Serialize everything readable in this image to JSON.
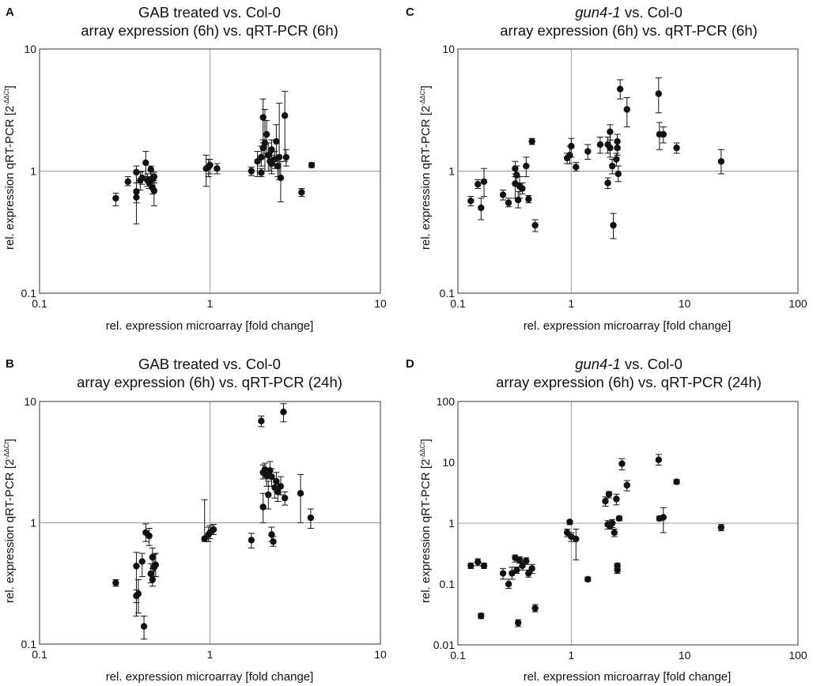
{
  "chart_data": [
    {
      "panel": "A",
      "type": "scatter",
      "title_line1": "GAB treated vs. Col-0",
      "title_line2": "array expression (6h) vs. qRT-PCR (6h)",
      "xlabel": "rel. expression microarray [fold change]",
      "ylabel": "rel. expression qRT-PCR [2",
      "ylabel_sup": "-ΔΔCt",
      "ylabel_end": "]",
      "xscale": "log",
      "yscale": "log",
      "xlim": [
        0.1,
        10
      ],
      "ylim": [
        0.1,
        10
      ],
      "xticks": [
        "0.1",
        "1",
        "10"
      ],
      "yticks": [
        "0.1",
        "1",
        "10"
      ],
      "points": [
        {
          "x": 0.28,
          "y": 0.6,
          "lo": 0.52,
          "hi": 0.66
        },
        {
          "x": 0.33,
          "y": 0.82,
          "lo": 0.76,
          "hi": 0.9
        },
        {
          "x": 0.37,
          "y": 0.98,
          "lo": 0.8,
          "hi": 1.1
        },
        {
          "x": 0.37,
          "y": 0.68,
          "lo": 0.37,
          "hi": 0.8
        },
        {
          "x": 0.37,
          "y": 0.61,
          "lo": 0.55,
          "hi": 0.7
        },
        {
          "x": 0.39,
          "y": 0.84,
          "lo": 0.7,
          "hi": 0.98
        },
        {
          "x": 0.4,
          "y": 0.88,
          "lo": 0.78,
          "hi": 1.0
        },
        {
          "x": 0.42,
          "y": 1.17,
          "lo": 0.9,
          "hi": 1.45
        },
        {
          "x": 0.43,
          "y": 0.84,
          "lo": 0.75,
          "hi": 0.95
        },
        {
          "x": 0.44,
          "y": 0.8,
          "lo": 0.72,
          "hi": 0.9
        },
        {
          "x": 0.45,
          "y": 1.03,
          "lo": 0.9,
          "hi": 1.1
        },
        {
          "x": 0.46,
          "y": 0.73,
          "lo": 0.65,
          "hi": 0.82
        },
        {
          "x": 0.46,
          "y": 0.86,
          "lo": 0.77,
          "hi": 0.95
        },
        {
          "x": 0.47,
          "y": 0.9,
          "lo": 0.84,
          "hi": 0.98
        },
        {
          "x": 0.47,
          "y": 0.69,
          "lo": 0.52,
          "hi": 0.8
        },
        {
          "x": 0.95,
          "y": 1.05,
          "lo": 0.75,
          "hi": 1.35
        },
        {
          "x": 0.98,
          "y": 1.08,
          "lo": 0.9,
          "hi": 1.25
        },
        {
          "x": 1.0,
          "y": 1.12,
          "lo": 0.95,
          "hi": 1.25
        },
        {
          "x": 1.1,
          "y": 1.05,
          "lo": 0.95,
          "hi": 1.15
        },
        {
          "x": 1.75,
          "y": 1.0,
          "lo": 0.92,
          "hi": 1.08
        },
        {
          "x": 1.9,
          "y": 1.2,
          "lo": 0.9,
          "hi": 1.45
        },
        {
          "x": 2.0,
          "y": 1.3,
          "lo": 1.1,
          "hi": 1.6
        },
        {
          "x": 2.0,
          "y": 0.97,
          "lo": 0.9,
          "hi": 1.05
        },
        {
          "x": 2.05,
          "y": 2.75,
          "lo": 1.7,
          "hi": 3.9
        },
        {
          "x": 2.05,
          "y": 1.55,
          "lo": 1.3,
          "hi": 1.8
        },
        {
          "x": 2.1,
          "y": 1.7,
          "lo": 1.0,
          "hi": 3.2
        },
        {
          "x": 2.15,
          "y": 2.0,
          "lo": 1.4,
          "hi": 2.6
        },
        {
          "x": 2.2,
          "y": 1.35,
          "lo": 1.0,
          "hi": 1.7
        },
        {
          "x": 2.25,
          "y": 1.2,
          "lo": 1.0,
          "hi": 1.4
        },
        {
          "x": 2.3,
          "y": 1.5,
          "lo": 1.2,
          "hi": 1.8
        },
        {
          "x": 2.3,
          "y": 1.15,
          "lo": 0.95,
          "hi": 1.35
        },
        {
          "x": 2.4,
          "y": 1.25,
          "lo": 1.05,
          "hi": 1.45
        },
        {
          "x": 2.45,
          "y": 1.75,
          "lo": 1.25,
          "hi": 2.4
        },
        {
          "x": 2.5,
          "y": 1.1,
          "lo": 0.9,
          "hi": 1.3
        },
        {
          "x": 2.55,
          "y": 1.3,
          "lo": 0.85,
          "hi": 3.6
        },
        {
          "x": 2.6,
          "y": 0.88,
          "lo": 0.56,
          "hi": 1.2
        },
        {
          "x": 2.75,
          "y": 2.85,
          "lo": 1.2,
          "hi": 4.5
        },
        {
          "x": 2.8,
          "y": 1.3,
          "lo": 1.1,
          "hi": 1.5
        },
        {
          "x": 3.45,
          "y": 0.67,
          "lo": 0.62,
          "hi": 0.72
        },
        {
          "x": 3.95,
          "y": 1.12,
          "lo": 1.07,
          "hi": 1.17
        }
      ]
    },
    {
      "panel": "B",
      "type": "scatter",
      "title_line1": "GAB treated vs. Col-0",
      "title_line2": "array expression (6h) vs. qRT-PCR (24h)",
      "xlabel": "rel. expression microarray [fold change]",
      "ylabel": "rel. expression qRT-PCR [2",
      "ylabel_sup": "-ΔΔCt",
      "ylabel_end": "]",
      "xscale": "log",
      "yscale": "log",
      "xlim": [
        0.1,
        10
      ],
      "ylim": [
        0.1,
        10
      ],
      "xticks": [
        "0.1",
        "1",
        "10"
      ],
      "yticks": [
        "0.1",
        "1",
        "10"
      ],
      "points": [
        {
          "x": 0.28,
          "y": 0.32,
          "lo": 0.3,
          "hi": 0.34
        },
        {
          "x": 0.37,
          "y": 0.25,
          "lo": 0.22,
          "hi": 0.28
        },
        {
          "x": 0.37,
          "y": 0.44,
          "lo": 0.17,
          "hi": 0.57
        },
        {
          "x": 0.38,
          "y": 0.26,
          "lo": 0.18,
          "hi": 0.34
        },
        {
          "x": 0.4,
          "y": 0.48,
          "lo": 0.36,
          "hi": 0.56
        },
        {
          "x": 0.41,
          "y": 0.14,
          "lo": 0.11,
          "hi": 0.17
        },
        {
          "x": 0.42,
          "y": 0.83,
          "lo": 0.7,
          "hi": 0.98
        },
        {
          "x": 0.44,
          "y": 0.78,
          "lo": 0.65,
          "hi": 0.9
        },
        {
          "x": 0.45,
          "y": 0.38,
          "lo": 0.32,
          "hi": 0.46
        },
        {
          "x": 0.46,
          "y": 0.52,
          "lo": 0.42,
          "hi": 0.62
        },
        {
          "x": 0.46,
          "y": 0.34,
          "lo": 0.3,
          "hi": 0.4
        },
        {
          "x": 0.47,
          "y": 0.43,
          "lo": 0.36,
          "hi": 0.55
        },
        {
          "x": 0.48,
          "y": 0.45,
          "lo": 0.36,
          "hi": 0.56
        },
        {
          "x": 0.93,
          "y": 0.74,
          "lo": 0.7,
          "hi": 1.55
        },
        {
          "x": 0.98,
          "y": 0.8,
          "lo": 0.7,
          "hi": 0.92
        },
        {
          "x": 1.0,
          "y": 0.83,
          "lo": 0.74,
          "hi": 0.95
        },
        {
          "x": 1.05,
          "y": 0.88,
          "lo": 0.8,
          "hi": 0.97
        },
        {
          "x": 1.75,
          "y": 0.72,
          "lo": 0.62,
          "hi": 0.82
        },
        {
          "x": 2.0,
          "y": 6.9,
          "lo": 6.2,
          "hi": 7.6
        },
        {
          "x": 2.05,
          "y": 2.6,
          "lo": 2.3,
          "hi": 3.0
        },
        {
          "x": 2.05,
          "y": 1.35,
          "lo": 1.0,
          "hi": 1.75
        },
        {
          "x": 2.1,
          "y": 2.75,
          "lo": 2.4,
          "hi": 3.1
        },
        {
          "x": 2.15,
          "y": 2.45,
          "lo": 2.0,
          "hi": 2.8
        },
        {
          "x": 2.2,
          "y": 1.7,
          "lo": 1.3,
          "hi": 2.2
        },
        {
          "x": 2.25,
          "y": 2.7,
          "lo": 2.3,
          "hi": 3.2
        },
        {
          "x": 2.3,
          "y": 2.4,
          "lo": 2.0,
          "hi": 2.8
        },
        {
          "x": 2.3,
          "y": 0.8,
          "lo": 0.7,
          "hi": 0.92
        },
        {
          "x": 2.35,
          "y": 0.7,
          "lo": 0.64,
          "hi": 0.77
        },
        {
          "x": 2.4,
          "y": 1.95,
          "lo": 1.6,
          "hi": 2.3
        },
        {
          "x": 2.45,
          "y": 2.2,
          "lo": 1.8,
          "hi": 2.6
        },
        {
          "x": 2.5,
          "y": 1.8,
          "lo": 1.5,
          "hi": 2.1
        },
        {
          "x": 2.6,
          "y": 2.0,
          "lo": 1.7,
          "hi": 2.4
        },
        {
          "x": 2.7,
          "y": 8.2,
          "lo": 6.8,
          "hi": 9.6
        },
        {
          "x": 2.75,
          "y": 1.6,
          "lo": 1.4,
          "hi": 1.8
        },
        {
          "x": 3.4,
          "y": 1.75,
          "lo": 1.0,
          "hi": 2.5
        },
        {
          "x": 3.9,
          "y": 1.1,
          "lo": 0.9,
          "hi": 1.3
        }
      ]
    },
    {
      "panel": "C",
      "type": "scatter",
      "title_italic": "gun4-1",
      "title_line1": " vs. Col-0",
      "title_line2": "array expression (6h) vs. qRT-PCR (6h)",
      "xlabel": "rel. expression microarray [fold change]",
      "ylabel": "rel. expression qRT-PCR [2",
      "ylabel_sup": "-ΔΔCt",
      "ylabel_end": "]",
      "xscale": "log",
      "yscale": "log",
      "xlim": [
        0.1,
        100
      ],
      "ylim": [
        0.1,
        10
      ],
      "xticks": [
        "0.1",
        "1",
        "10",
        "100"
      ],
      "yticks": [
        "0.1",
        "1",
        "10"
      ],
      "points": [
        {
          "x": 0.13,
          "y": 0.57,
          "lo": 0.52,
          "hi": 0.62
        },
        {
          "x": 0.15,
          "y": 0.78,
          "lo": 0.72,
          "hi": 0.85
        },
        {
          "x": 0.16,
          "y": 0.5,
          "lo": 0.4,
          "hi": 0.6
        },
        {
          "x": 0.17,
          "y": 0.82,
          "lo": 0.62,
          "hi": 1.05
        },
        {
          "x": 0.25,
          "y": 0.64,
          "lo": 0.58,
          "hi": 0.7
        },
        {
          "x": 0.28,
          "y": 0.55,
          "lo": 0.51,
          "hi": 0.6
        },
        {
          "x": 0.32,
          "y": 1.05,
          "lo": 0.9,
          "hi": 1.2
        },
        {
          "x": 0.32,
          "y": 0.79,
          "lo": 0.6,
          "hi": 0.95
        },
        {
          "x": 0.33,
          "y": 0.93,
          "lo": 0.8,
          "hi": 1.1
        },
        {
          "x": 0.34,
          "y": 0.58,
          "lo": 0.5,
          "hi": 0.68
        },
        {
          "x": 0.35,
          "y": 0.75,
          "lo": 0.6,
          "hi": 0.9
        },
        {
          "x": 0.37,
          "y": 0.72,
          "lo": 0.65,
          "hi": 0.8
        },
        {
          "x": 0.4,
          "y": 1.1,
          "lo": 0.9,
          "hi": 1.3
        },
        {
          "x": 0.42,
          "y": 0.59,
          "lo": 0.55,
          "hi": 0.63
        },
        {
          "x": 0.45,
          "y": 1.75,
          "lo": 1.65,
          "hi": 1.85
        },
        {
          "x": 0.48,
          "y": 0.36,
          "lo": 0.32,
          "hi": 0.4
        },
        {
          "x": 0.92,
          "y": 1.28,
          "lo": 1.15,
          "hi": 1.4
        },
        {
          "x": 0.97,
          "y": 1.35,
          "lo": 1.15,
          "hi": 1.6
        },
        {
          "x": 1.0,
          "y": 1.6,
          "lo": 1.3,
          "hi": 1.85
        },
        {
          "x": 1.1,
          "y": 1.08,
          "lo": 1.0,
          "hi": 1.18
        },
        {
          "x": 1.4,
          "y": 1.45,
          "lo": 1.25,
          "hi": 1.65
        },
        {
          "x": 1.8,
          "y": 1.65,
          "lo": 1.4,
          "hi": 1.9
        },
        {
          "x": 2.1,
          "y": 1.65,
          "lo": 1.4,
          "hi": 1.9
        },
        {
          "x": 2.1,
          "y": 0.8,
          "lo": 0.72,
          "hi": 0.88
        },
        {
          "x": 2.2,
          "y": 2.1,
          "lo": 1.8,
          "hi": 2.4
        },
        {
          "x": 2.2,
          "y": 1.55,
          "lo": 1.3,
          "hi": 1.8
        },
        {
          "x": 2.3,
          "y": 1.1,
          "lo": 0.95,
          "hi": 1.25
        },
        {
          "x": 2.35,
          "y": 0.36,
          "lo": 0.28,
          "hi": 0.45
        },
        {
          "x": 2.5,
          "y": 1.25,
          "lo": 1.1,
          "hi": 1.4
        },
        {
          "x": 2.55,
          "y": 1.75,
          "lo": 1.5,
          "hi": 2.0
        },
        {
          "x": 2.55,
          "y": 1.55,
          "lo": 1.35,
          "hi": 1.75
        },
        {
          "x": 2.6,
          "y": 0.95,
          "lo": 0.82,
          "hi": 1.1
        },
        {
          "x": 2.7,
          "y": 4.7,
          "lo": 3.9,
          "hi": 5.6
        },
        {
          "x": 3.1,
          "y": 3.2,
          "lo": 2.3,
          "hi": 4.0
        },
        {
          "x": 5.9,
          "y": 4.3,
          "lo": 3.0,
          "hi": 5.8
        },
        {
          "x": 6.0,
          "y": 2.0,
          "lo": 1.5,
          "hi": 2.5
        },
        {
          "x": 6.5,
          "y": 2.0,
          "lo": 1.7,
          "hi": 2.3
        },
        {
          "x": 8.5,
          "y": 1.55,
          "lo": 1.4,
          "hi": 1.7
        },
        {
          "x": 21.0,
          "y": 1.2,
          "lo": 0.95,
          "hi": 1.5
        }
      ]
    },
    {
      "panel": "D",
      "type": "scatter",
      "title_italic": "gun4-1",
      "title_line1": " vs. Col-0",
      "title_line2": "array expression (6h) vs. qRT-PCR (24h)",
      "xlabel": "rel. expression microarray [fold change]",
      "ylabel": "rel. expression qRT-PCR [2",
      "ylabel_sup": "-ΔΔCt",
      "ylabel_end": "]",
      "xscale": "log",
      "yscale": "log",
      "xlim": [
        0.1,
        100
      ],
      "ylim": [
        0.01,
        100
      ],
      "xticks": [
        "0.1",
        "1",
        "10",
        "100"
      ],
      "yticks": [
        "0.01",
        "0.1",
        "1",
        "10",
        "100"
      ],
      "points": [
        {
          "x": 0.13,
          "y": 0.2,
          "lo": 0.18,
          "hi": 0.22
        },
        {
          "x": 0.15,
          "y": 0.23,
          "lo": 0.2,
          "hi": 0.26
        },
        {
          "x": 0.16,
          "y": 0.03,
          "lo": 0.027,
          "hi": 0.033
        },
        {
          "x": 0.17,
          "y": 0.2,
          "lo": 0.18,
          "hi": 0.22
        },
        {
          "x": 0.25,
          "y": 0.15,
          "lo": 0.12,
          "hi": 0.18
        },
        {
          "x": 0.28,
          "y": 0.1,
          "lo": 0.085,
          "hi": 0.12
        },
        {
          "x": 0.3,
          "y": 0.15,
          "lo": 0.12,
          "hi": 0.19
        },
        {
          "x": 0.32,
          "y": 0.27,
          "lo": 0.23,
          "hi": 0.3
        },
        {
          "x": 0.33,
          "y": 0.17,
          "lo": 0.15,
          "hi": 0.19
        },
        {
          "x": 0.34,
          "y": 0.023,
          "lo": 0.02,
          "hi": 0.026
        },
        {
          "x": 0.35,
          "y": 0.25,
          "lo": 0.22,
          "hi": 0.28
        },
        {
          "x": 0.37,
          "y": 0.2,
          "lo": 0.17,
          "hi": 0.23
        },
        {
          "x": 0.4,
          "y": 0.24,
          "lo": 0.21,
          "hi": 0.27
        },
        {
          "x": 0.42,
          "y": 0.15,
          "lo": 0.13,
          "hi": 0.17
        },
        {
          "x": 0.45,
          "y": 0.18,
          "lo": 0.15,
          "hi": 0.21
        },
        {
          "x": 0.48,
          "y": 0.04,
          "lo": 0.035,
          "hi": 0.046
        },
        {
          "x": 0.92,
          "y": 0.7,
          "lo": 0.6,
          "hi": 0.8
        },
        {
          "x": 0.97,
          "y": 1.05,
          "lo": 0.95,
          "hi": 1.1
        },
        {
          "x": 1.0,
          "y": 0.6,
          "lo": 0.5,
          "hi": 0.7
        },
        {
          "x": 1.1,
          "y": 0.55,
          "lo": 0.25,
          "hi": 0.8
        },
        {
          "x": 1.4,
          "y": 0.12,
          "lo": 0.11,
          "hi": 0.13
        },
        {
          "x": 2.0,
          "y": 2.3,
          "lo": 1.9,
          "hi": 2.7
        },
        {
          "x": 2.1,
          "y": 0.95,
          "lo": 0.8,
          "hi": 1.1
        },
        {
          "x": 2.15,
          "y": 3.0,
          "lo": 2.6,
          "hi": 3.3
        },
        {
          "x": 2.2,
          "y": 0.9,
          "lo": 0.8,
          "hi": 1.0
        },
        {
          "x": 2.3,
          "y": 1.0,
          "lo": 0.85,
          "hi": 1.15
        },
        {
          "x": 2.4,
          "y": 0.7,
          "lo": 0.6,
          "hi": 0.8
        },
        {
          "x": 2.5,
          "y": 2.5,
          "lo": 2.0,
          "hi": 3.0
        },
        {
          "x": 2.55,
          "y": 0.2,
          "lo": 0.18,
          "hi": 0.22
        },
        {
          "x": 2.55,
          "y": 0.17,
          "lo": 0.15,
          "hi": 0.19
        },
        {
          "x": 2.65,
          "y": 1.2,
          "lo": 1.1,
          "hi": 1.3
        },
        {
          "x": 2.8,
          "y": 9.5,
          "lo": 7.5,
          "hi": 11.5
        },
        {
          "x": 3.1,
          "y": 4.2,
          "lo": 3.4,
          "hi": 5.0
        },
        {
          "x": 5.9,
          "y": 11.0,
          "lo": 9.0,
          "hi": 13.5
        },
        {
          "x": 6.0,
          "y": 1.2,
          "lo": 1.1,
          "hi": 1.3
        },
        {
          "x": 6.5,
          "y": 1.25,
          "lo": 0.7,
          "hi": 1.8
        },
        {
          "x": 8.5,
          "y": 4.8,
          "lo": 4.4,
          "hi": 5.2
        },
        {
          "x": 21.0,
          "y": 0.85,
          "lo": 0.75,
          "hi": 0.95
        }
      ]
    }
  ]
}
